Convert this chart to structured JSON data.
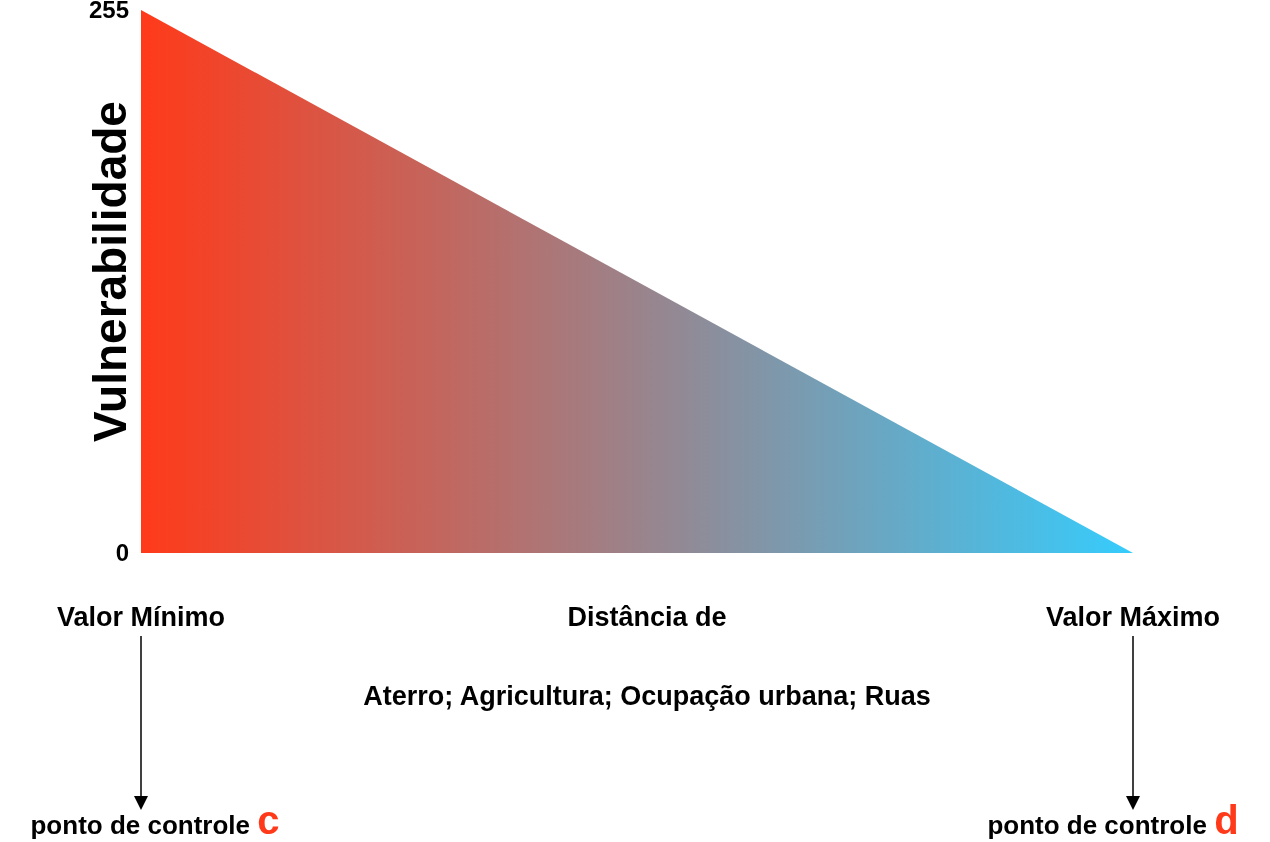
{
  "chart_data": {
    "type": "area",
    "ylabel": "Vulnerabilidade",
    "xlabel": "Distância de",
    "categories": [
      "Valor Mínimo",
      "Valor Máximo"
    ],
    "values": [
      255,
      0
    ],
    "colors": [
      "#ff3a1a",
      "#36ccfc"
    ],
    "ylim": [
      0,
      255
    ],
    "yticks": [
      0,
      255
    ],
    "annotations": [
      "Aterro; Agricultura; Ocupação urbana; Ruas",
      "ponto de controle c",
      "ponto de controle d"
    ]
  }
}
